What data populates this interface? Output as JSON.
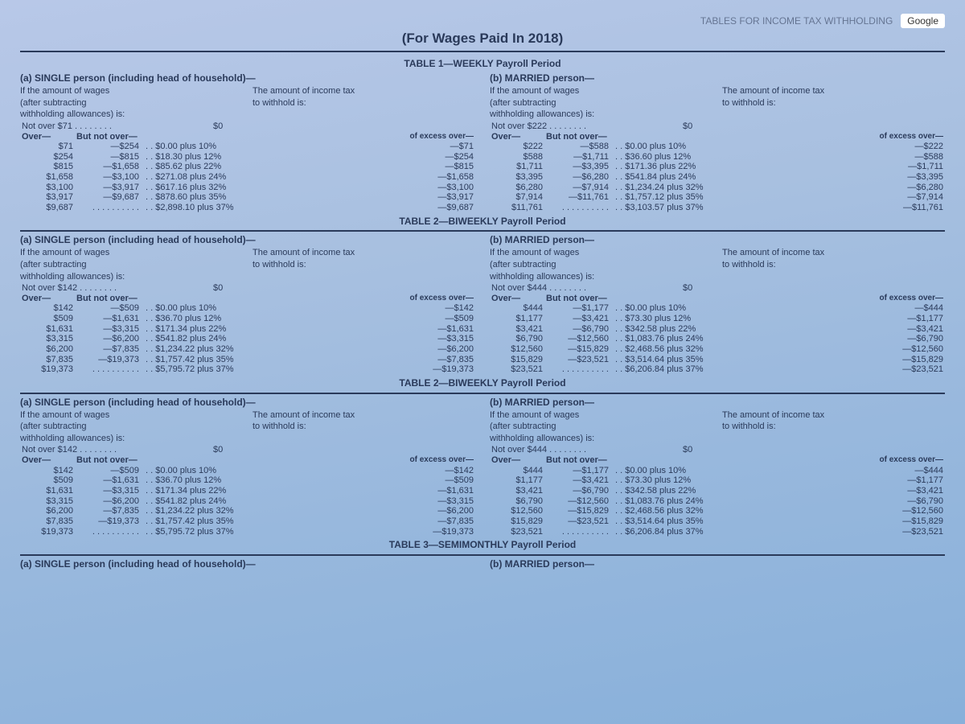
{
  "top_caption": "(For Wages Paid In 2018)",
  "top_prefix_faded": "TABLES FOR INCOME TAX WITHHOLDING",
  "google_label": "Google",
  "tables": [
    {
      "name": "TABLE 1—WEEKLY Payroll Period",
      "footer": "TABLE 2—BIWEEKLY Payroll Period",
      "single": {
        "title": "(a) SINGLE person (including head of household)—",
        "intro1": "If the amount of wages",
        "intro2": "(after subtracting",
        "intro3": "withholding allowances) is:",
        "intro4": "The amount of income tax",
        "intro5": "to withhold is:",
        "notover": "Not over $71 . . . . . . . .",
        "zero": "$0",
        "colA": "Over—",
        "colB": "But not over—",
        "colC": "of excess over—",
        "rows": [
          {
            "a": "$71",
            "b": "—$254",
            "t": "$0.00 plus 10%",
            "e": "—$71"
          },
          {
            "a": "$254",
            "b": "—$815",
            "t": "$18.30 plus 12%",
            "e": "—$254"
          },
          {
            "a": "$815",
            "b": "—$1,658",
            "t": "$85.62 plus 22%",
            "e": "—$815"
          },
          {
            "a": "$1,658",
            "b": "—$3,100",
            "t": "$271.08 plus 24%",
            "e": "—$1,658"
          },
          {
            "a": "$3,100",
            "b": "—$3,917",
            "t": "$617.16 plus 32%",
            "e": "—$3,100"
          },
          {
            "a": "$3,917",
            "b": "—$9,687",
            "t": "$878.60 plus 35%",
            "e": "—$3,917"
          },
          {
            "a": "$9,687",
            "b": "",
            "t": "$2,898.10 plus 37%",
            "e": "—$9,687"
          }
        ]
      },
      "married": {
        "title": "(b) MARRIED person—",
        "intro1": "If the amount of wages",
        "intro2": "(after subtracting",
        "intro3": "withholding allowances) is:",
        "intro4": "The amount of income tax",
        "intro5": "to withhold is:",
        "notover": "Not over $222 . . . . . . . .",
        "zero": "$0",
        "colA": "Over—",
        "colB": "But not over—",
        "colC": "of excess over—",
        "rows": [
          {
            "a": "$222",
            "b": "—$588",
            "t": "$0.00 plus 10%",
            "e": "—$222"
          },
          {
            "a": "$588",
            "b": "—$1,711",
            "t": "$36.60 plus 12%",
            "e": "—$588"
          },
          {
            "a": "$1,711",
            "b": "—$3,395",
            "t": "$171.36 plus 22%",
            "e": "—$1,711"
          },
          {
            "a": "$3,395",
            "b": "—$6,280",
            "t": "$541.84 plus 24%",
            "e": "—$3,395"
          },
          {
            "a": "$6,280",
            "b": "—$7,914",
            "t": "$1,234.24 plus 32%",
            "e": "—$6,280"
          },
          {
            "a": "$7,914",
            "b": "—$11,761",
            "t": "$1,757.12 plus 35%",
            "e": "—$7,914"
          },
          {
            "a": "$11,761",
            "b": "",
            "t": "$3,103.57 plus 37%",
            "e": "—$11,761"
          }
        ]
      }
    },
    {
      "name": "",
      "footer": "TABLE 2—BIWEEKLY Payroll Period",
      "single": {
        "title": "(a) SINGLE person (including head of household)—",
        "intro1": "If the amount of wages",
        "intro2": "(after subtracting",
        "intro3": "withholding allowances) is:",
        "intro4": "The amount of income tax",
        "intro5": "to withhold is:",
        "notover": "Not over $142 . . . . . . . .",
        "zero": "$0",
        "colA": "Over—",
        "colB": "But not over—",
        "colC": "of excess over—",
        "rows": [
          {
            "a": "$142",
            "b": "—$509",
            "t": "$0.00 plus 10%",
            "e": "—$142"
          },
          {
            "a": "$509",
            "b": "—$1,631",
            "t": "$36.70 plus 12%",
            "e": "—$509"
          },
          {
            "a": "$1,631",
            "b": "—$3,315",
            "t": "$171.34 plus 22%",
            "e": "—$1,631"
          },
          {
            "a": "$3,315",
            "b": "—$6,200",
            "t": "$541.82 plus 24%",
            "e": "—$3,315"
          },
          {
            "a": "$6,200",
            "b": "—$7,835",
            "t": "$1,234.22 plus 32%",
            "e": "—$6,200"
          },
          {
            "a": "$7,835",
            "b": "—$19,373",
            "t": "$1,757.42 plus 35%",
            "e": "—$7,835"
          },
          {
            "a": "$19,373",
            "b": "",
            "t": "$5,795.72 plus 37%",
            "e": "—$19,373"
          }
        ]
      },
      "married": {
        "title": "(b) MARRIED person—",
        "intro1": "If the amount of wages",
        "intro2": "(after subtracting",
        "intro3": "withholding allowances) is:",
        "intro4": "The amount of income tax",
        "intro5": "to withhold is:",
        "notover": "Not over $444 . . . . . . . .",
        "zero": "$0",
        "colA": "Over—",
        "colB": "But not over—",
        "colC": "of excess over—",
        "rows": [
          {
            "a": "$444",
            "b": "—$1,177",
            "t": "$0.00 plus 10%",
            "e": "—$444"
          },
          {
            "a": "$1,177",
            "b": "—$3,421",
            "t": "$73.30 plus 12%",
            "e": "—$1,177"
          },
          {
            "a": "$3,421",
            "b": "—$6,790",
            "t": "$342.58 plus 22%",
            "e": "—$3,421"
          },
          {
            "a": "$6,790",
            "b": "—$12,560",
            "t": "$1,083.76 plus 24%",
            "e": "—$6,790"
          },
          {
            "a": "$12,560",
            "b": "—$15,829",
            "t": "$2,468.56 plus 32%",
            "e": "—$12,560"
          },
          {
            "a": "$15,829",
            "b": "—$23,521",
            "t": "$3,514.64 plus 35%",
            "e": "—$15,829"
          },
          {
            "a": "$23,521",
            "b": "",
            "t": "$6,206.84 plus 37%",
            "e": "—$23,521"
          }
        ]
      }
    },
    {
      "name": "",
      "footer": "TABLE 3—SEMIMONTHLY Payroll Period",
      "single": {
        "title": "(a) SINGLE person (including head of household)—",
        "intro1": "If the amount of wages",
        "intro2": "(after subtracting",
        "intro3": "withholding allowances) is:",
        "intro4": "The amount of income tax",
        "intro5": "to withhold is:",
        "notover": "Not over $142 . . . . . . . .",
        "zero": "$0",
        "colA": "Over—",
        "colB": "But not over—",
        "colC": "of excess over—",
        "rows": [
          {
            "a": "$142",
            "b": "—$509",
            "t": "$0.00 plus 10%",
            "e": "—$142"
          },
          {
            "a": "$509",
            "b": "—$1,631",
            "t": "$36.70 plus 12%",
            "e": "—$509"
          },
          {
            "a": "$1,631",
            "b": "—$3,315",
            "t": "$171.34 plus 22%",
            "e": "—$1,631"
          },
          {
            "a": "$3,315",
            "b": "—$6,200",
            "t": "$541.82 plus 24%",
            "e": "—$3,315"
          },
          {
            "a": "$6,200",
            "b": "—$7,835",
            "t": "$1,234.22 plus 32%",
            "e": "—$6,200"
          },
          {
            "a": "$7,835",
            "b": "—$19,373",
            "t": "$1,757.42 plus 35%",
            "e": "—$7,835"
          },
          {
            "a": "$19,373",
            "b": "",
            "t": "$5,795.72 plus 37%",
            "e": "—$19,373"
          }
        ]
      },
      "married": {
        "title": "(b) MARRIED person—",
        "intro1": "If the amount of wages",
        "intro2": "(after subtracting",
        "intro3": "withholding allowances) is:",
        "intro4": "The amount of income tax",
        "intro5": "to withhold is:",
        "notover": "Not over $444 . . . . . . . .",
        "zero": "$0",
        "colA": "Over—",
        "colB": "But not over—",
        "colC": "of excess over—",
        "rows": [
          {
            "a": "$444",
            "b": "—$1,177",
            "t": "$0.00 plus 10%",
            "e": "—$444"
          },
          {
            "a": "$1,177",
            "b": "—$3,421",
            "t": "$73.30 plus 12%",
            "e": "—$1,177"
          },
          {
            "a": "$3,421",
            "b": "—$6,790",
            "t": "$342.58 plus 22%",
            "e": "—$3,421"
          },
          {
            "a": "$6,790",
            "b": "—$12,560",
            "t": "$1,083.76 plus 24%",
            "e": "—$6,790"
          },
          {
            "a": "$12,560",
            "b": "—$15,829",
            "t": "$2,468.56 plus 32%",
            "e": "—$12,560"
          },
          {
            "a": "$15,829",
            "b": "—$23,521",
            "t": "$3,514.64 plus 35%",
            "e": "—$15,829"
          },
          {
            "a": "$23,521",
            "b": "",
            "t": "$6,206.84 plus 37%",
            "e": "—$23,521"
          }
        ]
      }
    }
  ],
  "partial": {
    "single": "(a) SINGLE person (including head of household)—",
    "married": "(b) MARRIED person—"
  }
}
